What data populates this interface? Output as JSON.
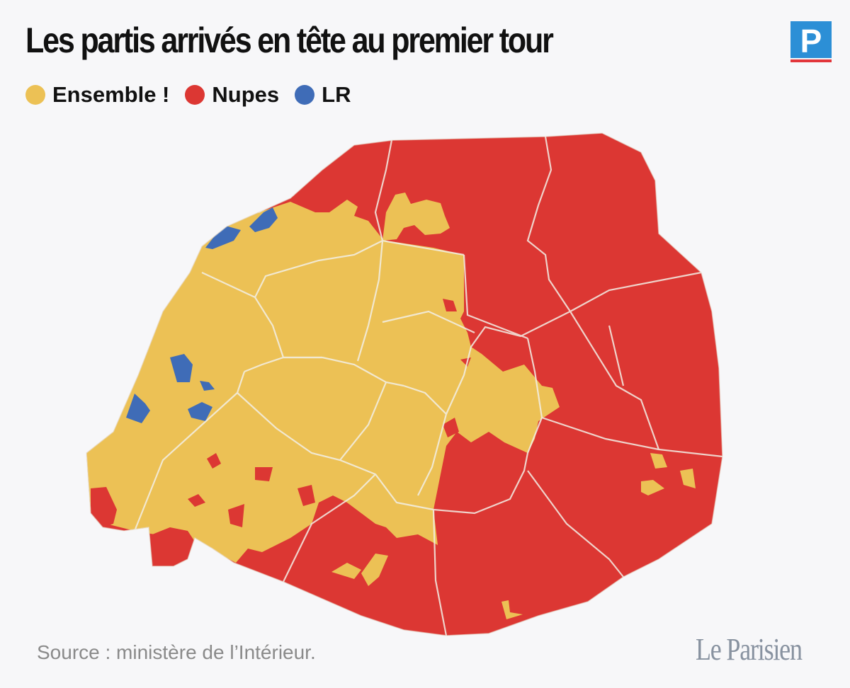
{
  "title": "Les partis arrivés en tête au premier tour",
  "legend": [
    {
      "label": "Ensemble !",
      "color": "#ecc155"
    },
    {
      "label": "Nupes",
      "color": "#dc3733"
    },
    {
      "label": "LR",
      "color": "#3f6cb7"
    }
  ],
  "source": "Source : ministère de l’Intérieur.",
  "brand": "Le Parisien",
  "logo_letter": "P",
  "colors": {
    "ensemble": "#ecc155",
    "nupes": "#dc3733",
    "lr": "#3f6cb7",
    "logo_blue": "#2c8fd6",
    "logo_red": "#e2363b"
  }
}
